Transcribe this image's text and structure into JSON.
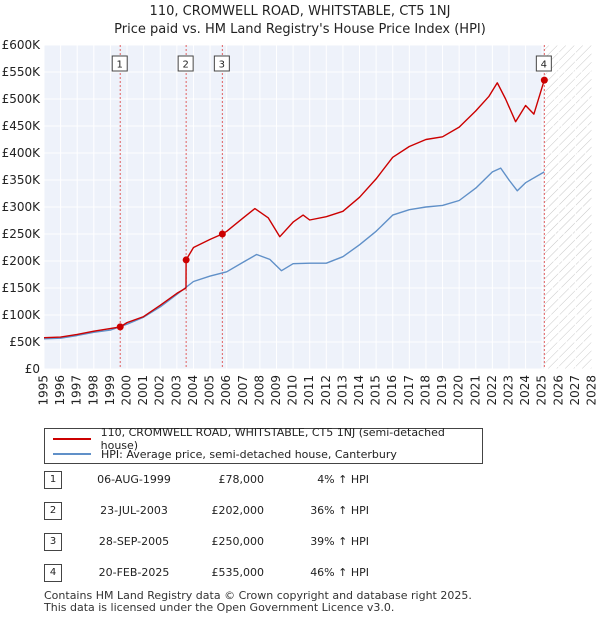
{
  "title_line1": "110, CROMWELL ROAD, WHITSTABLE, CT5 1NJ",
  "title_line2": "Price paid vs. HM Land Registry's House Price Index (HPI)",
  "chart_data": {
    "type": "line",
    "xlim": [
      1995,
      2028
    ],
    "ylim": [
      0,
      600000
    ],
    "x_ticks": [
      "1995",
      "1996",
      "1997",
      "1998",
      "1999",
      "2000",
      "2001",
      "2002",
      "2003",
      "2004",
      "2005",
      "2006",
      "2007",
      "2008",
      "2009",
      "2010",
      "2011",
      "2012",
      "2013",
      "2014",
      "2015",
      "2016",
      "2017",
      "2018",
      "2019",
      "2020",
      "2021",
      "2022",
      "2023",
      "2024",
      "2025",
      "2026",
      "2027",
      "2028"
    ],
    "y_ticks": [
      {
        "value": 0,
        "label": "£0"
      },
      {
        "value": 50000,
        "label": "£50K"
      },
      {
        "value": 100000,
        "label": "£100K"
      },
      {
        "value": 150000,
        "label": "£150K"
      },
      {
        "value": 200000,
        "label": "£200K"
      },
      {
        "value": 250000,
        "label": "£250K"
      },
      {
        "value": 300000,
        "label": "£300K"
      },
      {
        "value": 350000,
        "label": "£350K"
      },
      {
        "value": 400000,
        "label": "£400K"
      },
      {
        "value": 450000,
        "label": "£450K"
      },
      {
        "value": 500000,
        "label": "£500K"
      },
      {
        "value": 550000,
        "label": "£550K"
      },
      {
        "value": 600000,
        "label": "£600K"
      }
    ],
    "future_from": 2025.13,
    "series": [
      {
        "name": "110, CROMWELL ROAD, WHITSTABLE, CT5 1NJ (semi-detached house)",
        "color": "#cc0000",
        "points": [
          [
            1995,
            58000
          ],
          [
            1996,
            59000
          ],
          [
            1997,
            64000
          ],
          [
            1998,
            70000
          ],
          [
            1999.59,
            78000
          ],
          [
            2000,
            86000
          ],
          [
            2001,
            97000
          ],
          [
            2002,
            118000
          ],
          [
            2003,
            140000
          ],
          [
            2003.55,
            150000
          ],
          [
            2003.56,
            202000
          ],
          [
            2004,
            225000
          ],
          [
            2005,
            240000
          ],
          [
            2005.74,
            250000
          ],
          [
            2006,
            255000
          ],
          [
            2007,
            280000
          ],
          [
            2007.7,
            297000
          ],
          [
            2008.5,
            280000
          ],
          [
            2009.2,
            245000
          ],
          [
            2010,
            272000
          ],
          [
            2010.6,
            285000
          ],
          [
            2011,
            276000
          ],
          [
            2012,
            282000
          ],
          [
            2013,
            292000
          ],
          [
            2014,
            318000
          ],
          [
            2015,
            352000
          ],
          [
            2016,
            392000
          ],
          [
            2017,
            412000
          ],
          [
            2018,
            425000
          ],
          [
            2019,
            430000
          ],
          [
            2020,
            448000
          ],
          [
            2021,
            478000
          ],
          [
            2021.8,
            505000
          ],
          [
            2022.3,
            530000
          ],
          [
            2022.8,
            500000
          ],
          [
            2023.4,
            458000
          ],
          [
            2024,
            488000
          ],
          [
            2024.5,
            472000
          ],
          [
            2025.13,
            535000
          ]
        ]
      },
      {
        "name": "HPI: Average price, semi-detached house, Canterbury",
        "color": "#6090c8",
        "points": [
          [
            1995,
            56000
          ],
          [
            1996,
            57000
          ],
          [
            1997,
            62000
          ],
          [
            1998,
            68000
          ],
          [
            1999,
            72000
          ],
          [
            2000,
            83000
          ],
          [
            2001,
            96000
          ],
          [
            2002,
            115000
          ],
          [
            2003,
            138000
          ],
          [
            2004,
            162000
          ],
          [
            2005,
            172000
          ],
          [
            2006,
            180000
          ],
          [
            2007,
            198000
          ],
          [
            2007.8,
            212000
          ],
          [
            2008.6,
            203000
          ],
          [
            2009.3,
            182000
          ],
          [
            2010,
            195000
          ],
          [
            2011,
            196000
          ],
          [
            2012,
            196000
          ],
          [
            2013,
            208000
          ],
          [
            2014,
            230000
          ],
          [
            2015,
            255000
          ],
          [
            2016,
            285000
          ],
          [
            2017,
            295000
          ],
          [
            2018,
            300000
          ],
          [
            2019,
            303000
          ],
          [
            2020,
            312000
          ],
          [
            2021,
            335000
          ],
          [
            2022,
            365000
          ],
          [
            2022.5,
            372000
          ],
          [
            2023,
            350000
          ],
          [
            2023.5,
            330000
          ],
          [
            2024,
            345000
          ],
          [
            2025.13,
            365000
          ]
        ]
      }
    ],
    "sales": [
      {
        "label": "1",
        "x": 1999.59,
        "price": 78000
      },
      {
        "label": "2",
        "x": 2003.56,
        "price": 202000
      },
      {
        "label": "3",
        "x": 2005.74,
        "price": 250000
      },
      {
        "label": "4",
        "x": 2025.13,
        "price": 535000
      }
    ]
  },
  "legend": {
    "property_label": "110, CROMWELL ROAD, WHITSTABLE, CT5 1NJ (semi-detached house)",
    "hpi_label": "HPI: Average price, semi-detached house, Canterbury",
    "property_color": "#cc0000",
    "hpi_color": "#6090c8"
  },
  "sales_table": [
    {
      "num": "1",
      "date": "06-AUG-1999",
      "price": "£78,000",
      "hpi": "4% ↑ HPI"
    },
    {
      "num": "2",
      "date": "23-JUL-2003",
      "price": "£202,000",
      "hpi": "36% ↑ HPI"
    },
    {
      "num": "3",
      "date": "28-SEP-2005",
      "price": "£250,000",
      "hpi": "39% ↑ HPI"
    },
    {
      "num": "4",
      "date": "20-FEB-2025",
      "price": "£535,000",
      "hpi": "46% ↑ HPI"
    }
  ],
  "footer_line1": "Contains HM Land Registry data © Crown copyright and database right 2025.",
  "footer_line2": "This data is licensed under the Open Government Licence v3.0."
}
